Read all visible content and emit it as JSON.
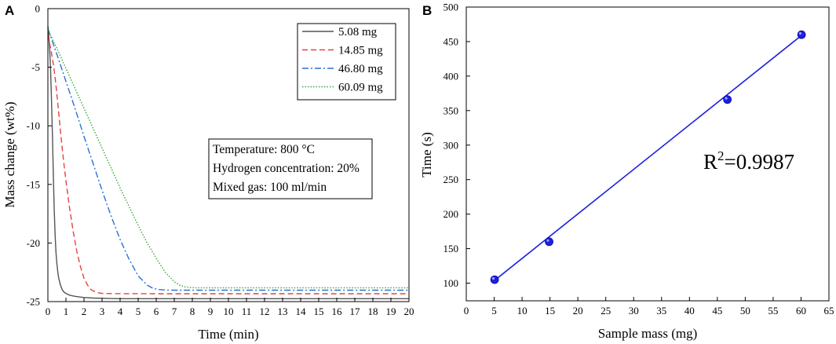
{
  "panels": {
    "a_letter": "A",
    "b_letter": "B"
  },
  "chart_data": [
    {
      "panel": "A",
      "type": "line",
      "title": "",
      "xlabel": "Time (min)",
      "ylabel": "Mass change (wt%)",
      "xlim": [
        0,
        20
      ],
      "ylim": [
        -25,
        0
      ],
      "xticks": [
        0,
        1,
        2,
        3,
        4,
        5,
        6,
        7,
        8,
        9,
        10,
        11,
        12,
        13,
        14,
        15,
        16,
        17,
        18,
        19,
        20
      ],
      "yticks": [
        0,
        -5,
        -10,
        -15,
        -20,
        -25
      ],
      "grid": false,
      "legend_position": "top-right",
      "series": [
        {
          "name": "5.08 mg",
          "color": "#555555",
          "style": "solid",
          "x": [
            0,
            0.05,
            0.1,
            0.15,
            0.2,
            0.25,
            0.3,
            0.35,
            0.4,
            0.45,
            0.5,
            0.55,
            0.6,
            0.7,
            0.8,
            0.9,
            1.0,
            1.2,
            1.5,
            2.0,
            2.5,
            3.0,
            4,
            6,
            8,
            10,
            12,
            14,
            16,
            18,
            20
          ],
          "y": [
            -1.5,
            -2.3,
            -3.5,
            -5.3,
            -7.8,
            -10.8,
            -14.0,
            -17.0,
            -19.3,
            -20.8,
            -21.8,
            -22.5,
            -23.0,
            -23.6,
            -24.0,
            -24.2,
            -24.3,
            -24.45,
            -24.55,
            -24.65,
            -24.7,
            -24.72,
            -24.75,
            -24.75,
            -24.75,
            -24.75,
            -24.75,
            -24.75,
            -24.75,
            -24.75,
            -24.75
          ]
        },
        {
          "name": "14.85 mg",
          "color": "#e8413c",
          "style": "dashed",
          "x": [
            0,
            0.1,
            0.2,
            0.3,
            0.4,
            0.5,
            0.6,
            0.7,
            0.8,
            0.9,
            1.0,
            1.2,
            1.4,
            1.6,
            1.8,
            2.0,
            2.2,
            2.4,
            2.6,
            2.8,
            3.0,
            4,
            6,
            8,
            10,
            12,
            14,
            16,
            18,
            20
          ],
          "y": [
            -2.2,
            -3.0,
            -3.8,
            -4.7,
            -5.9,
            -7.3,
            -8.9,
            -10.5,
            -12.0,
            -13.4,
            -14.7,
            -17.0,
            -19.0,
            -20.7,
            -22.0,
            -23.0,
            -23.6,
            -24.0,
            -24.15,
            -24.25,
            -24.3,
            -24.32,
            -24.33,
            -24.33,
            -24.33,
            -24.33,
            -24.33,
            -24.33,
            -24.33,
            -24.33
          ]
        },
        {
          "name": "46.80 mg",
          "color": "#2b6fd6",
          "style": "dashdot",
          "x": [
            0,
            0.5,
            1.0,
            1.5,
            2.0,
            2.5,
            3.0,
            3.5,
            4.0,
            4.5,
            5.0,
            5.5,
            5.8,
            6.1,
            6.4,
            6.7,
            7.0,
            8,
            10,
            12,
            14,
            16,
            18,
            20
          ],
          "y": [
            -1.7,
            -3.9,
            -6.2,
            -8.5,
            -10.9,
            -13.2,
            -15.5,
            -17.7,
            -19.7,
            -21.4,
            -22.8,
            -23.6,
            -23.85,
            -23.97,
            -24.0,
            -24.02,
            -24.03,
            -24.03,
            -24.03,
            -24.03,
            -24.03,
            -24.03,
            -24.03,
            -24.03
          ]
        },
        {
          "name": "60.09 mg",
          "color": "#3aa83a",
          "style": "dotted",
          "x": [
            0,
            0.5,
            1.0,
            1.5,
            2.0,
            2.5,
            3.0,
            3.5,
            4.0,
            4.5,
            5.0,
            5.5,
            6.0,
            6.5,
            7.0,
            7.3,
            7.6,
            7.9,
            8.2,
            9,
            10,
            12,
            14,
            16,
            18,
            20
          ],
          "y": [
            -1.8,
            -3.4,
            -5.1,
            -6.8,
            -8.5,
            -10.2,
            -11.9,
            -13.6,
            -15.3,
            -16.9,
            -18.5,
            -20.0,
            -21.3,
            -22.5,
            -23.3,
            -23.6,
            -23.75,
            -23.8,
            -23.82,
            -23.82,
            -23.82,
            -23.82,
            -23.82,
            -23.82,
            -23.82,
            -23.82
          ]
        }
      ],
      "annotations": [
        "Temperature: 800 °C",
        "Hydrogen concentration: 20%",
        "Mixed gas: 100 ml/min"
      ]
    },
    {
      "panel": "B",
      "type": "scatter",
      "title": "",
      "xlabel": "Sample mass (mg)",
      "ylabel": "Time (s)",
      "xlim": [
        0,
        65
      ],
      "ylim": [
        75,
        500
      ],
      "xticks": [
        0,
        5,
        10,
        15,
        20,
        25,
        30,
        35,
        40,
        45,
        50,
        55,
        60,
        65
      ],
      "yticks": [
        100,
        150,
        200,
        250,
        300,
        350,
        400,
        450,
        500
      ],
      "grid": false,
      "series": [
        {
          "name": "data",
          "color": "#1f1fe0",
          "x": [
            5.08,
            14.85,
            46.8,
            60.09
          ],
          "y": [
            105,
            160,
            366,
            460
          ]
        }
      ],
      "fit": {
        "x": [
          5.08,
          60.09
        ],
        "y": [
          104,
          459
        ],
        "color": "#1f1fe0"
      },
      "r2_prefix": "R",
      "r2_sup": "2",
      "r2_value": "=0.9987"
    }
  ]
}
